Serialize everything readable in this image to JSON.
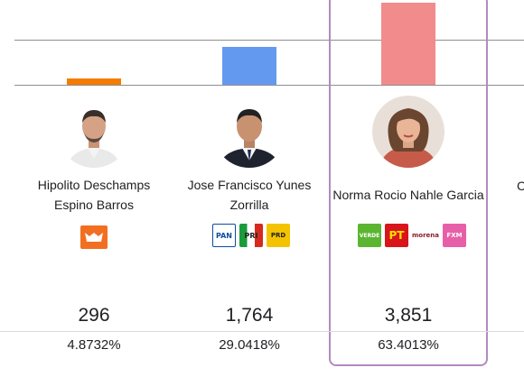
{
  "chart_data": {
    "type": "bar",
    "categories": [
      "Hipolito Deschamps Espino Barros",
      "Jose Francisco Yunes Zorrilla",
      "Norma Rocio Nahle Garcia"
    ],
    "values": [
      296,
      1764,
      3851
    ]
  },
  "colors": {
    "bar_1": "#f57c00",
    "bar_2": "#639af0",
    "bar_3": "#f28b8b",
    "highlight_border": "#b28ac0"
  },
  "candidates": [
    {
      "name_line1": "Hipolito Deschamps",
      "name_line2": "Espino Barros",
      "votes": "296",
      "percent": "4.8732%",
      "parties": [
        {
          "label": "MC",
          "color": "#f26f21"
        }
      ]
    },
    {
      "name_line1": "Jose Francisco Yunes",
      "name_line2": "Zorrilla",
      "votes": "1,764",
      "percent": "29.0418%",
      "parties": [
        {
          "label": "PAN",
          "color": "#0b4da2"
        },
        {
          "label": "PRI",
          "color": "#d52b1e"
        },
        {
          "label": "PRD",
          "color": "#f4c300"
        }
      ]
    },
    {
      "name_line1": "Norma Rocio Nahle Garcia",
      "name_line2": "",
      "votes": "3,851",
      "percent": "63.4013%",
      "parties": [
        {
          "label": "VERDE",
          "color": "#5bb531"
        },
        {
          "label": "PT",
          "color": "#d8151b"
        },
        {
          "label": "morena",
          "color": "#8c1c2c"
        },
        {
          "label": "FXM",
          "color": "#e75fa8"
        }
      ]
    }
  ],
  "next_candidate_initial": "C"
}
